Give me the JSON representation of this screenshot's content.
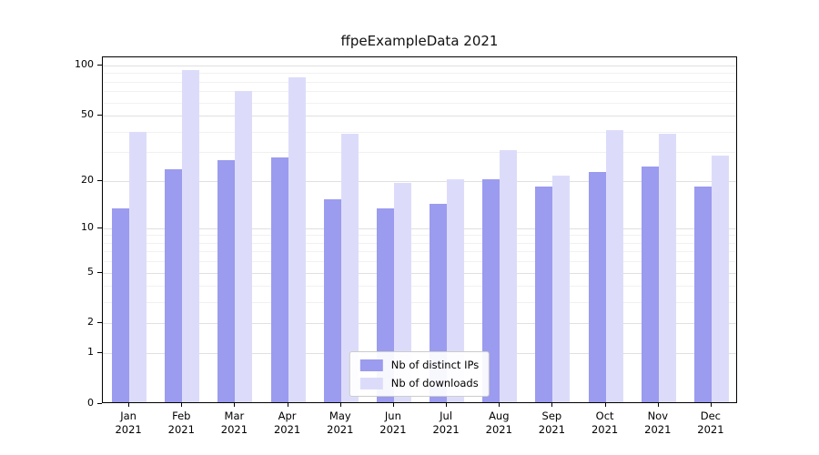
{
  "title": "ffpeExampleData 2021",
  "chart_data": {
    "type": "bar",
    "title": "ffpeExampleData 2021",
    "categories": [
      "Jan",
      "Feb",
      "Mar",
      "Apr",
      "May",
      "Jun",
      "Jul",
      "Aug",
      "Sep",
      "Oct",
      "Nov",
      "Dec"
    ],
    "year": "2021",
    "series": [
      {
        "name": "Nb of distinct IPs",
        "color": "#9b9bef",
        "values": [
          13,
          23,
          26,
          27,
          15,
          13,
          14,
          20,
          18,
          22,
          24,
          18
        ]
      },
      {
        "name": "Nb of downloads",
        "color": "#dcdcfa",
        "values": [
          39,
          92,
          69,
          83,
          38,
          19,
          20,
          30,
          21,
          40,
          38,
          28
        ]
      }
    ],
    "y_axis": {
      "scale": "log1p",
      "major_ticks": [
        0,
        1,
        2,
        5,
        10,
        20,
        50,
        100
      ],
      "minor_ticks": [
        3,
        4,
        6,
        7,
        8,
        9,
        30,
        40,
        60,
        70,
        80,
        90
      ],
      "range": [
        0,
        110
      ]
    },
    "xlabel": "",
    "ylabel": "",
    "grid": true,
    "legend": {
      "position": "lower center",
      "entries": [
        "Nb of distinct IPs",
        "Nb of downloads"
      ]
    }
  }
}
